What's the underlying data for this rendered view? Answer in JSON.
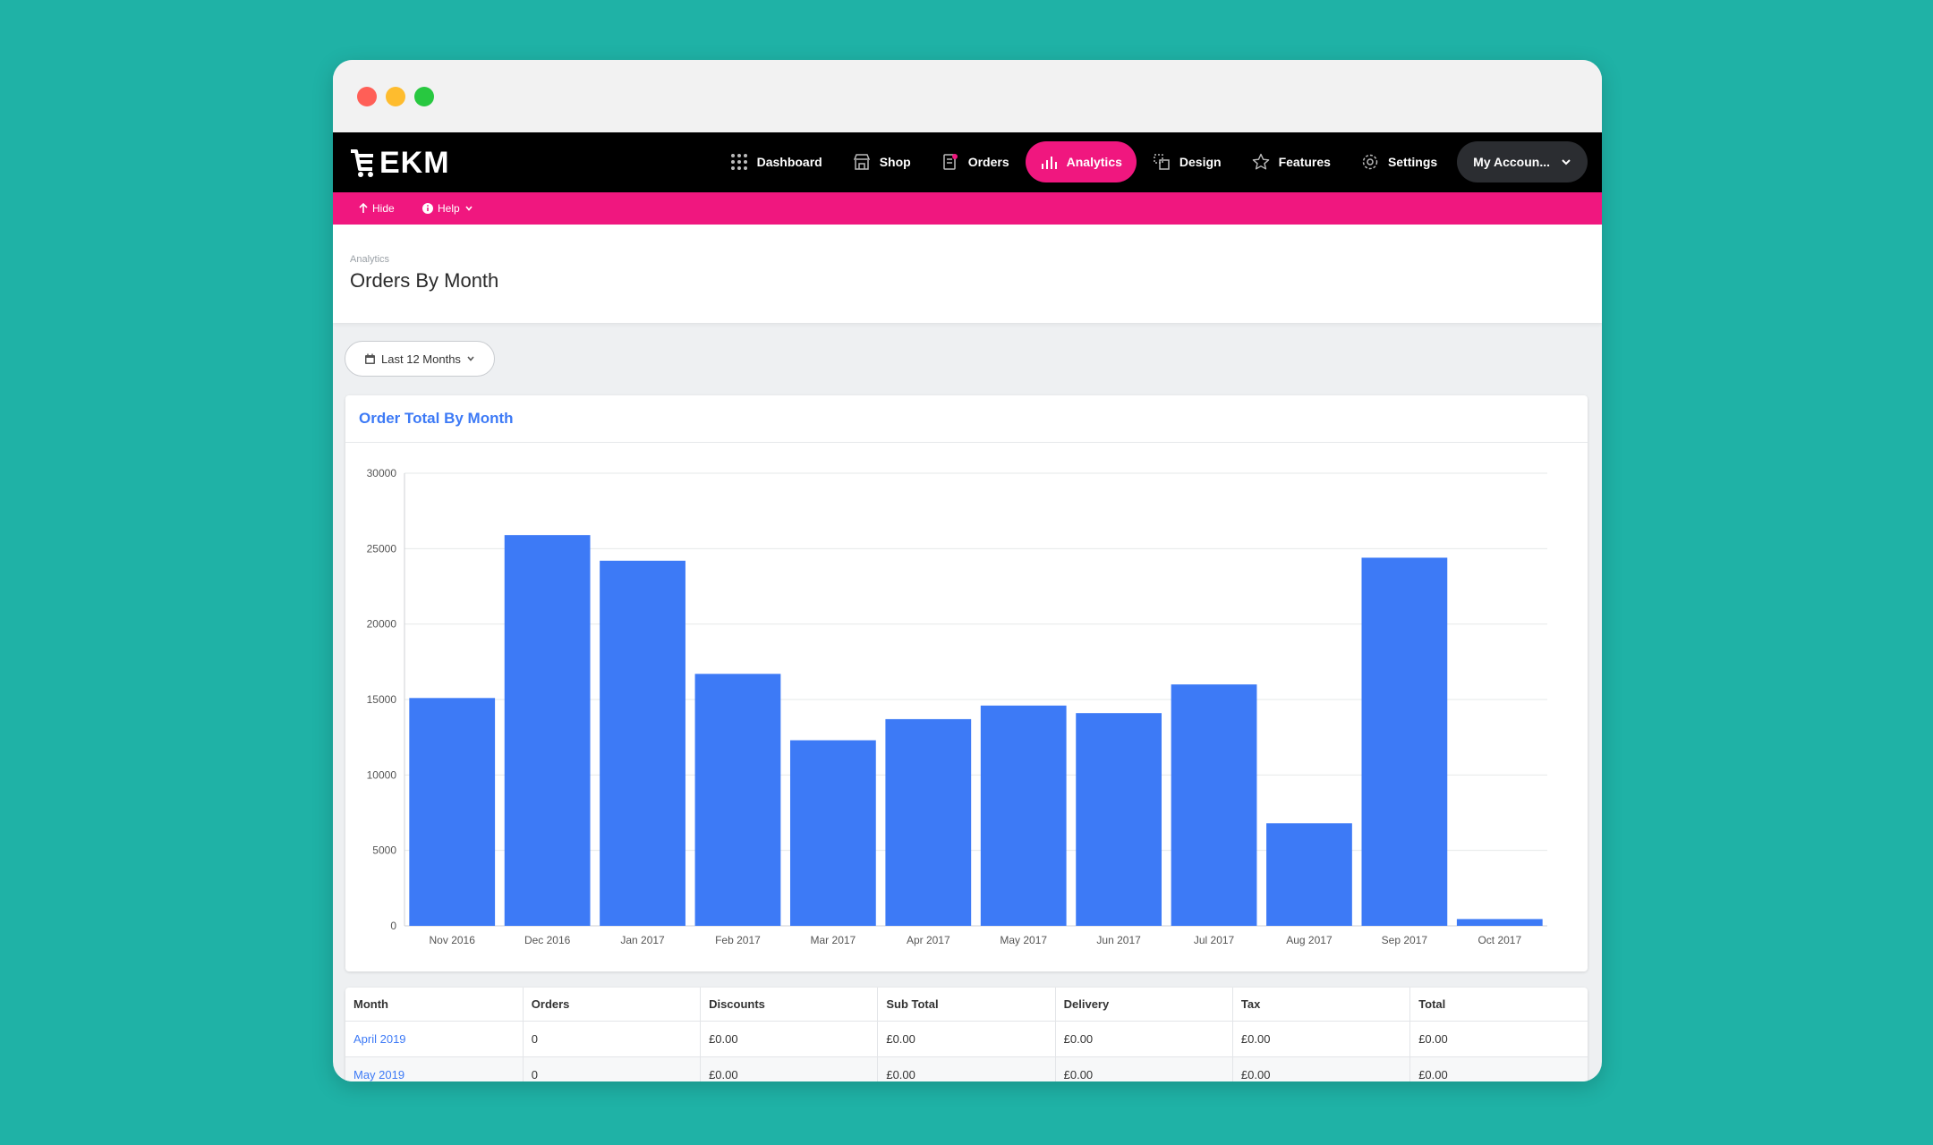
{
  "nav": {
    "logo": "EKM",
    "items": [
      {
        "label": "Dashboard",
        "icon": "grid-icon"
      },
      {
        "label": "Shop",
        "icon": "storefront-icon"
      },
      {
        "label": "Orders",
        "icon": "orders-icon"
      },
      {
        "label": "Analytics",
        "icon": "bar-chart-icon",
        "active": true
      },
      {
        "label": "Design",
        "icon": "design-icon"
      },
      {
        "label": "Features",
        "icon": "star-icon"
      },
      {
        "label": "Settings",
        "icon": "gear-icon"
      }
    ],
    "account_label": "My Accoun..."
  },
  "subbar": {
    "hide_label": "Hide",
    "help_label": "Help"
  },
  "header": {
    "breadcrumb": "Analytics",
    "title": "Orders By Month"
  },
  "filter": {
    "label": "Last 12 Months"
  },
  "card": {
    "title": "Order Total By Month"
  },
  "colors": {
    "accent": "#f0177f",
    "bar": "#3d7af6",
    "link": "#3d7af6"
  },
  "chart_data": {
    "type": "bar",
    "title": "Order Total By Month",
    "categories": [
      "Nov 2016",
      "Dec 2016",
      "Jan 2017",
      "Feb 2017",
      "Mar 2017",
      "Apr 2017",
      "May 2017",
      "Jun 2017",
      "Jul 2017",
      "Aug 2017",
      "Sep 2017",
      "Oct 2017"
    ],
    "values": [
      15100,
      25900,
      24200,
      16700,
      12300,
      13700,
      14600,
      14100,
      16000,
      6800,
      24400,
      450
    ],
    "ylim": [
      0,
      30000
    ],
    "yticks": [
      0,
      5000,
      10000,
      15000,
      20000,
      25000,
      30000
    ],
    "xlabel": "",
    "ylabel": "",
    "grid": true,
    "legend": "none"
  },
  "table": {
    "columns": [
      "Month",
      "Orders",
      "Discounts",
      "Sub Total",
      "Delivery",
      "Tax",
      "Total"
    ],
    "rows": [
      [
        "April 2019",
        "0",
        "£0.00",
        "£0.00",
        "£0.00",
        "£0.00",
        "£0.00"
      ],
      [
        "May 2019",
        "0",
        "£0.00",
        "£0.00",
        "£0.00",
        "£0.00",
        "£0.00"
      ]
    ]
  }
}
